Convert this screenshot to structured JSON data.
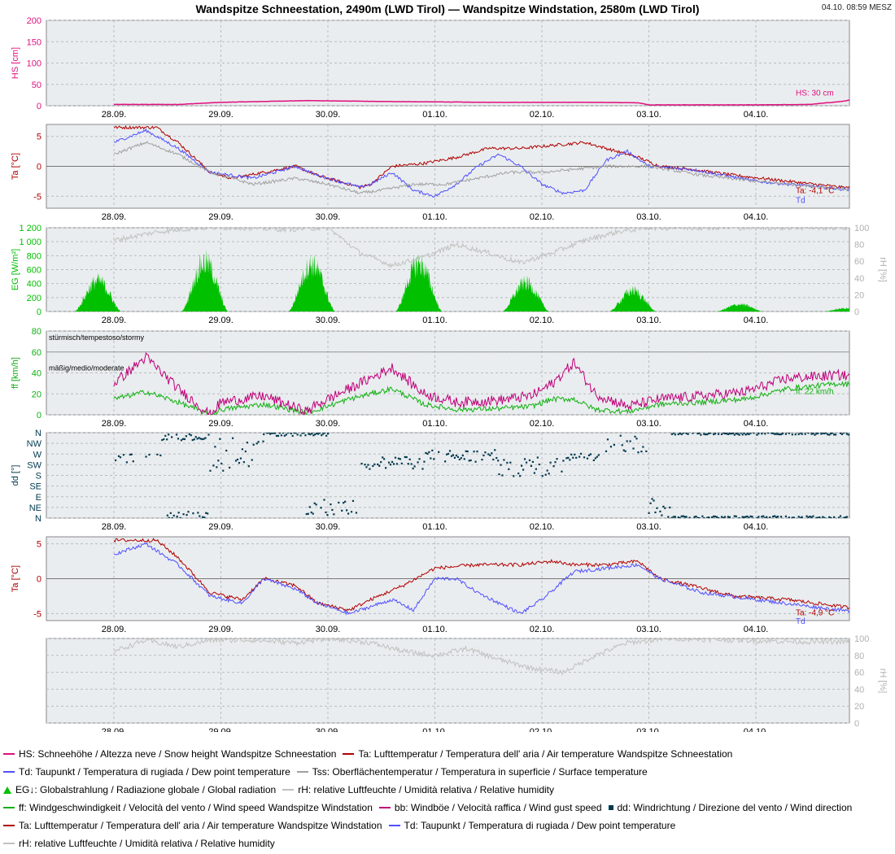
{
  "header": {
    "title": "Wandspitze Schneestation, 2490m (LWD Tirol) — Wandspitze Windstation, 2580m (LWD Tirol)",
    "timestamp": "04.10. 08:59 MESZ"
  },
  "colors": {
    "hs": "#e0107f",
    "ta": "#b00000",
    "td": "#4f4fff",
    "tss": "#a0a0a0",
    "eg": "#00c000",
    "rh": "#c0c0c0",
    "ff": "#10b010",
    "bb": "#c0007a",
    "dd": "#00394f",
    "panel_bg": "#eaedef",
    "grid": "#b8bcc0"
  },
  "chart_data": [
    {
      "type": "line",
      "panel": "snow_height",
      "ylabel": "HS [cm]",
      "ylim": [
        0,
        200
      ],
      "yticks": [
        "0",
        "50",
        "100",
        "150",
        "200"
      ],
      "xticks": [
        "28.09.",
        "29.09.",
        "30.09.",
        "01.10.",
        "02.10.",
        "03.10.",
        "04.10."
      ],
      "series": [
        {
          "name": "HS",
          "color_key": "hs",
          "x": [
            0,
            0.6,
            1.0,
            1.8,
            2.5,
            3.5,
            4.5,
            4.9,
            5.0,
            5.5,
            6.0,
            6.5,
            6.8,
            7.3
          ],
          "values": [
            3,
            3,
            8,
            12,
            10,
            8,
            8,
            7,
            2,
            2,
            2,
            3,
            10,
            30
          ]
        }
      ],
      "end_label": "HS: 30 cm"
    },
    {
      "type": "line",
      "panel": "temperature_snow_station",
      "ylabel": "Ta [°C]",
      "ylim": [
        -7,
        7
      ],
      "yticks": [
        "-5",
        "0",
        "5"
      ],
      "xticks": [
        "28.09.",
        "29.09.",
        "30.09.",
        "01.10.",
        "02.10.",
        "03.10.",
        "04.10."
      ],
      "series": [
        {
          "name": "Ta",
          "color_key": "ta",
          "x": [
            0,
            0.4,
            0.6,
            0.9,
            1.1,
            1.4,
            1.7,
            1.9,
            2.3,
            2.4,
            2.6,
            2.9,
            3.2,
            3.5,
            3.8,
            4.1,
            4.4,
            4.7,
            4.9,
            5.1,
            5.4,
            5.8,
            6.3,
            6.8,
            7.3
          ],
          "values": [
            6.5,
            6.5,
            4,
            -1,
            -2,
            -1,
            0,
            -1.5,
            -3.5,
            -3,
            0,
            0.5,
            1.5,
            3,
            3,
            3.5,
            4,
            2.5,
            1.5,
            0,
            -0.5,
            -1.5,
            -2.5,
            -3.5,
            -4.1
          ]
        },
        {
          "name": "Td",
          "color_key": "td",
          "x": [
            0,
            0.3,
            0.6,
            0.9,
            1.3,
            1.7,
            1.9,
            2.3,
            2.4,
            2.6,
            2.8,
            3.0,
            3.2,
            3.4,
            3.6,
            3.8,
            4.0,
            4.2,
            4.4,
            4.6,
            4.8,
            5.0,
            5.4,
            6.0,
            7.3
          ],
          "values": [
            4,
            6,
            3,
            -1,
            -2,
            0,
            -1.5,
            -3.5,
            -3,
            -1,
            -4,
            -5,
            -3,
            0,
            2,
            0,
            -3,
            -4.5,
            -4,
            1,
            2.5,
            0,
            -0.5,
            -2.5,
            -4.6
          ]
        },
        {
          "name": "Tss",
          "color_key": "tss",
          "x": [
            0,
            0.3,
            0.6,
            0.9,
            1.3,
            1.7,
            2.0,
            2.3,
            2.5,
            2.8,
            3.1,
            3.4,
            3.7,
            4.0,
            4.3,
            4.6,
            5.0,
            5.5,
            6.0,
            7.3
          ],
          "values": [
            2,
            4,
            2,
            -1,
            -3,
            -2,
            -3,
            -4.5,
            -4,
            -3,
            -3,
            -2,
            -1,
            -1,
            -0.5,
            0,
            0,
            -1.5,
            -2.5,
            -4.5
          ]
        }
      ],
      "end_label": "Ta: -4,1 °C",
      "end_label_2": "Td"
    },
    {
      "type": "area",
      "panel": "radiation",
      "ylabel": "EG [W/m²]",
      "ylabel_right": "rH [%]",
      "ylim": [
        0,
        1200
      ],
      "yticks": [
        "0",
        "200",
        "400",
        "600",
        "800",
        "1 000",
        "1 200"
      ],
      "ylim_right": [
        0,
        100
      ],
      "yticks_right": [
        "0",
        "20",
        "40",
        "60",
        "80",
        "100"
      ],
      "xticks": [
        "28.09.",
        "29.09.",
        "30.09.",
        "01.10.",
        "02.10.",
        "03.10.",
        "04.10."
      ],
      "series": [
        {
          "name": "EG",
          "color_key": "eg",
          "days": [
            {
              "center": -0.15,
              "peak": 560
            },
            {
              "center": 0.85,
              "peak": 900
            },
            {
              "center": 1.85,
              "peak": 860
            },
            {
              "center": 2.85,
              "peak": 880
            },
            {
              "center": 3.85,
              "peak": 520
            },
            {
              "center": 4.85,
              "peak": 380
            },
            {
              "center": 5.85,
              "peak": 130
            },
            {
              "center": 6.85,
              "peak": 60
            }
          ]
        },
        {
          "name": "rH",
          "color_key": "rh",
          "x": [
            0,
            0.4,
            0.8,
            1.2,
            1.6,
            2.0,
            2.3,
            2.6,
            2.9,
            3.2,
            3.5,
            3.8,
            4.1,
            4.4,
            4.7,
            5.0,
            5.5,
            6.0,
            7.3
          ],
          "values": [
            85,
            95,
            100,
            100,
            98,
            100,
            70,
            55,
            65,
            80,
            70,
            58,
            70,
            85,
            95,
            100,
            100,
            100,
            100
          ]
        }
      ]
    },
    {
      "type": "line",
      "panel": "wind_speed",
      "ylabel": "ff [km/h]",
      "ylim": [
        0,
        80
      ],
      "yticks": [
        "0",
        "20",
        "40",
        "60",
        "80"
      ],
      "xticks": [
        "28.09.",
        "29.09.",
        "30.09.",
        "01.10.",
        "02.10.",
        "03.10.",
        "04.10."
      ],
      "annotations": [
        "stürmisch/tempestoso/stormy",
        "mäßig/medio/moderate"
      ],
      "series": [
        {
          "name": "ff",
          "color_key": "ff",
          "x": [
            0,
            0.3,
            0.6,
            0.9,
            1.0,
            1.4,
            1.8,
            1.9,
            2.2,
            2.6,
            2.9,
            3.2,
            3.6,
            3.9,
            4.1,
            4.3,
            4.5,
            4.8,
            5.1,
            5.5,
            5.9,
            6.3,
            6.8,
            7.3
          ],
          "values": [
            15,
            22,
            12,
            0,
            5,
            10,
            2,
            5,
            15,
            25,
            10,
            5,
            6,
            8,
            15,
            15,
            5,
            3,
            10,
            12,
            15,
            25,
            30,
            22
          ]
        },
        {
          "name": "bb",
          "color_key": "bb",
          "x": [
            0,
            0.3,
            0.6,
            0.9,
            1.0,
            1.4,
            1.8,
            1.9,
            2.2,
            2.6,
            2.9,
            3.2,
            3.6,
            3.9,
            4.1,
            4.3,
            4.5,
            4.8,
            5.1,
            5.5,
            5.9,
            6.3,
            6.8,
            7.3
          ],
          "values": [
            30,
            55,
            25,
            0,
            12,
            18,
            3,
            10,
            25,
            45,
            20,
            12,
            14,
            18,
            30,
            50,
            20,
            8,
            15,
            18,
            22,
            35,
            38,
            28
          ]
        }
      ],
      "end_label": "ff: 22 km/h"
    },
    {
      "type": "scatter",
      "panel": "wind_direction",
      "ylabel": "dd [°]",
      "yticks": [
        "N",
        "NE",
        "E",
        "SE",
        "S",
        "SW",
        "W",
        "NW",
        "N"
      ],
      "xticks": [
        "28.09.",
        "29.09.",
        "30.09.",
        "01.10.",
        "02.10.",
        "03.10.",
        "04.10."
      ],
      "series": [
        {
          "name": "dd",
          "color_key": "dd",
          "segments": [
            {
              "x0": 0.0,
              "x1": 0.45,
              "center": 5.6,
              "spread": 0.4
            },
            {
              "x0": 0.45,
              "x1": 0.9,
              "center": 7.6,
              "spread": 0.3
            },
            {
              "x0": 0.5,
              "x1": 0.9,
              "center": 0.3,
              "spread": 0.4
            },
            {
              "x0": 0.9,
              "x1": 1.4,
              "center": 6.0,
              "spread": 1.6
            },
            {
              "x0": 1.4,
              "x1": 2.0,
              "center": 7.9,
              "spread": 0.2
            },
            {
              "x0": 1.8,
              "x1": 2.3,
              "center": 1.0,
              "spread": 0.8
            },
            {
              "x0": 2.3,
              "x1": 2.9,
              "center": 5.2,
              "spread": 0.6
            },
            {
              "x0": 2.9,
              "x1": 3.6,
              "center": 5.8,
              "spread": 0.6
            },
            {
              "x0": 3.6,
              "x1": 4.2,
              "center": 4.8,
              "spread": 0.9
            },
            {
              "x0": 4.2,
              "x1": 4.6,
              "center": 5.8,
              "spread": 0.5
            },
            {
              "x0": 4.6,
              "x1": 5.0,
              "center": 7.0,
              "spread": 0.9
            },
            {
              "x0": 5.0,
              "x1": 5.2,
              "center": 1.0,
              "spread": 0.9
            },
            {
              "x0": 5.2,
              "x1": 7.3,
              "center": 0.1,
              "spread": 0.1
            },
            {
              "x0": 5.2,
              "x1": 7.3,
              "center": 7.9,
              "spread": 0.1
            }
          ]
        }
      ]
    },
    {
      "type": "line",
      "panel": "temperature_wind_station",
      "ylabel": "Ta [°C]",
      "ylim": [
        -6,
        6
      ],
      "yticks": [
        "-5",
        "0",
        "5"
      ],
      "xticks": [
        "28.09.",
        "29.09.",
        "30.09.",
        "01.10.",
        "02.10.",
        "03.10.",
        "04.10."
      ],
      "series": [
        {
          "name": "Ta",
          "color_key": "ta",
          "x": [
            0,
            0.4,
            0.6,
            0.9,
            1.2,
            1.4,
            1.7,
            1.9,
            2.2,
            2.4,
            2.7,
            3.0,
            3.4,
            3.8,
            4.1,
            4.3,
            4.6,
            4.9,
            5.1,
            5.4,
            5.8,
            6.3,
            6.8,
            7.3
          ],
          "values": [
            5.5,
            5.5,
            3,
            -2,
            -3,
            0,
            -1,
            -3.5,
            -4.5,
            -3,
            -1,
            1.5,
            2,
            2,
            2.5,
            2,
            2,
            2.5,
            0,
            -1,
            -2.5,
            -3,
            -4,
            -4.9
          ]
        },
        {
          "name": "Td",
          "color_key": "td",
          "x": [
            0,
            0.3,
            0.6,
            0.9,
            1.2,
            1.4,
            1.7,
            1.9,
            2.2,
            2.4,
            2.6,
            2.8,
            3.0,
            3.2,
            3.4,
            3.6,
            3.8,
            4.0,
            4.3,
            4.6,
            4.9,
            5.1,
            5.5,
            6.0,
            7.3
          ],
          "values": [
            3.5,
            5,
            2,
            -2.5,
            -3.5,
            0,
            -1.5,
            -3.5,
            -5,
            -4,
            -3,
            -4.5,
            0,
            0,
            -2,
            -3.5,
            -5,
            -3,
            1,
            1.5,
            2,
            0,
            -2,
            -3,
            -5.5
          ]
        }
      ],
      "end_label": "Ta: -4,9 °C",
      "end_label_2": "Td"
    },
    {
      "type": "line",
      "panel": "humidity_wind_station",
      "ylabel_right": "rH [%]",
      "ylim_right": [
        0,
        100
      ],
      "yticks_right": [
        "0",
        "20",
        "40",
        "60",
        "80",
        "100"
      ],
      "xticks": [
        "28.09.",
        "29.09.",
        "30.09.",
        "01.10.",
        "02.10.",
        "03.10.",
        "04.10."
      ],
      "series": [
        {
          "name": "rH",
          "color_key": "rh",
          "x": [
            0,
            0.3,
            0.6,
            0.9,
            1.3,
            1.7,
            2.0,
            2.4,
            2.7,
            3.0,
            3.3,
            3.6,
            3.9,
            4.2,
            4.5,
            4.8,
            5.2,
            5.8,
            6.5,
            7.3
          ],
          "values": [
            85,
            98,
            90,
            98,
            98,
            95,
            100,
            95,
            85,
            80,
            88,
            75,
            65,
            60,
            80,
            95,
            100,
            98,
            96,
            96
          ]
        }
      ]
    }
  ],
  "legend": [
    [
      {
        "swatch": "line",
        "color_key": "hs",
        "label": "HS: Schneehöhe / Altezza neve / Snow height",
        "station": "Wandspitze Schneestation"
      },
      {
        "swatch": "line",
        "color_key": "ta",
        "label": "Ta: Lufttemperatur / Temperatura dell' aria / Air temperature",
        "station": "Wandspitze Schneestation"
      }
    ],
    [
      {
        "swatch": "line",
        "color_key": "td",
        "label": "Td: Taupunkt / Temperatura di rugiada / Dew point temperature",
        "station": ""
      },
      {
        "swatch": "line",
        "color_key": "tss",
        "label": "Tss: Oberflächentemperatur / Temperatura in superficie / Surface temperature",
        "station": ""
      }
    ],
    [
      {
        "swatch": "triangle",
        "color_key": "eg",
        "label": "EG↓: Globalstrahlung / Radiazione globale / Global radiation",
        "station": ""
      },
      {
        "swatch": "line",
        "color_key": "rh",
        "label": "rH: relative Luftfeuchte / Umidità relativa / Relative humidity",
        "station": ""
      }
    ],
    [
      {
        "swatch": "line",
        "color_key": "ff",
        "label": "ff: Windgeschwindigkeit / Velocità del vento / Wind speed",
        "station": "Wandspitze Windstation"
      },
      {
        "swatch": "line",
        "color_key": "bb",
        "label": "bb: Windböe / Velocità raffica / Wind gust speed",
        "station": ""
      },
      {
        "swatch": "square",
        "color_key": "dd",
        "label": "dd: Windrichtung / Direzione del vento / Wind direction",
        "station": ""
      }
    ],
    [
      {
        "swatch": "line",
        "color_key": "ta",
        "label": "Ta: Lufttemperatur / Temperatura dell' aria / Air temperature",
        "station": "Wandspitze Windstation"
      },
      {
        "swatch": "line",
        "color_key": "td",
        "label": "Td: Taupunkt / Temperatura di rugiada / Dew point temperature",
        "station": ""
      }
    ],
    [
      {
        "swatch": "line",
        "color_key": "rh",
        "label": "rH: relative Luftfeuchte / Umidità relativa / Relative humidity",
        "station": ""
      }
    ]
  ]
}
